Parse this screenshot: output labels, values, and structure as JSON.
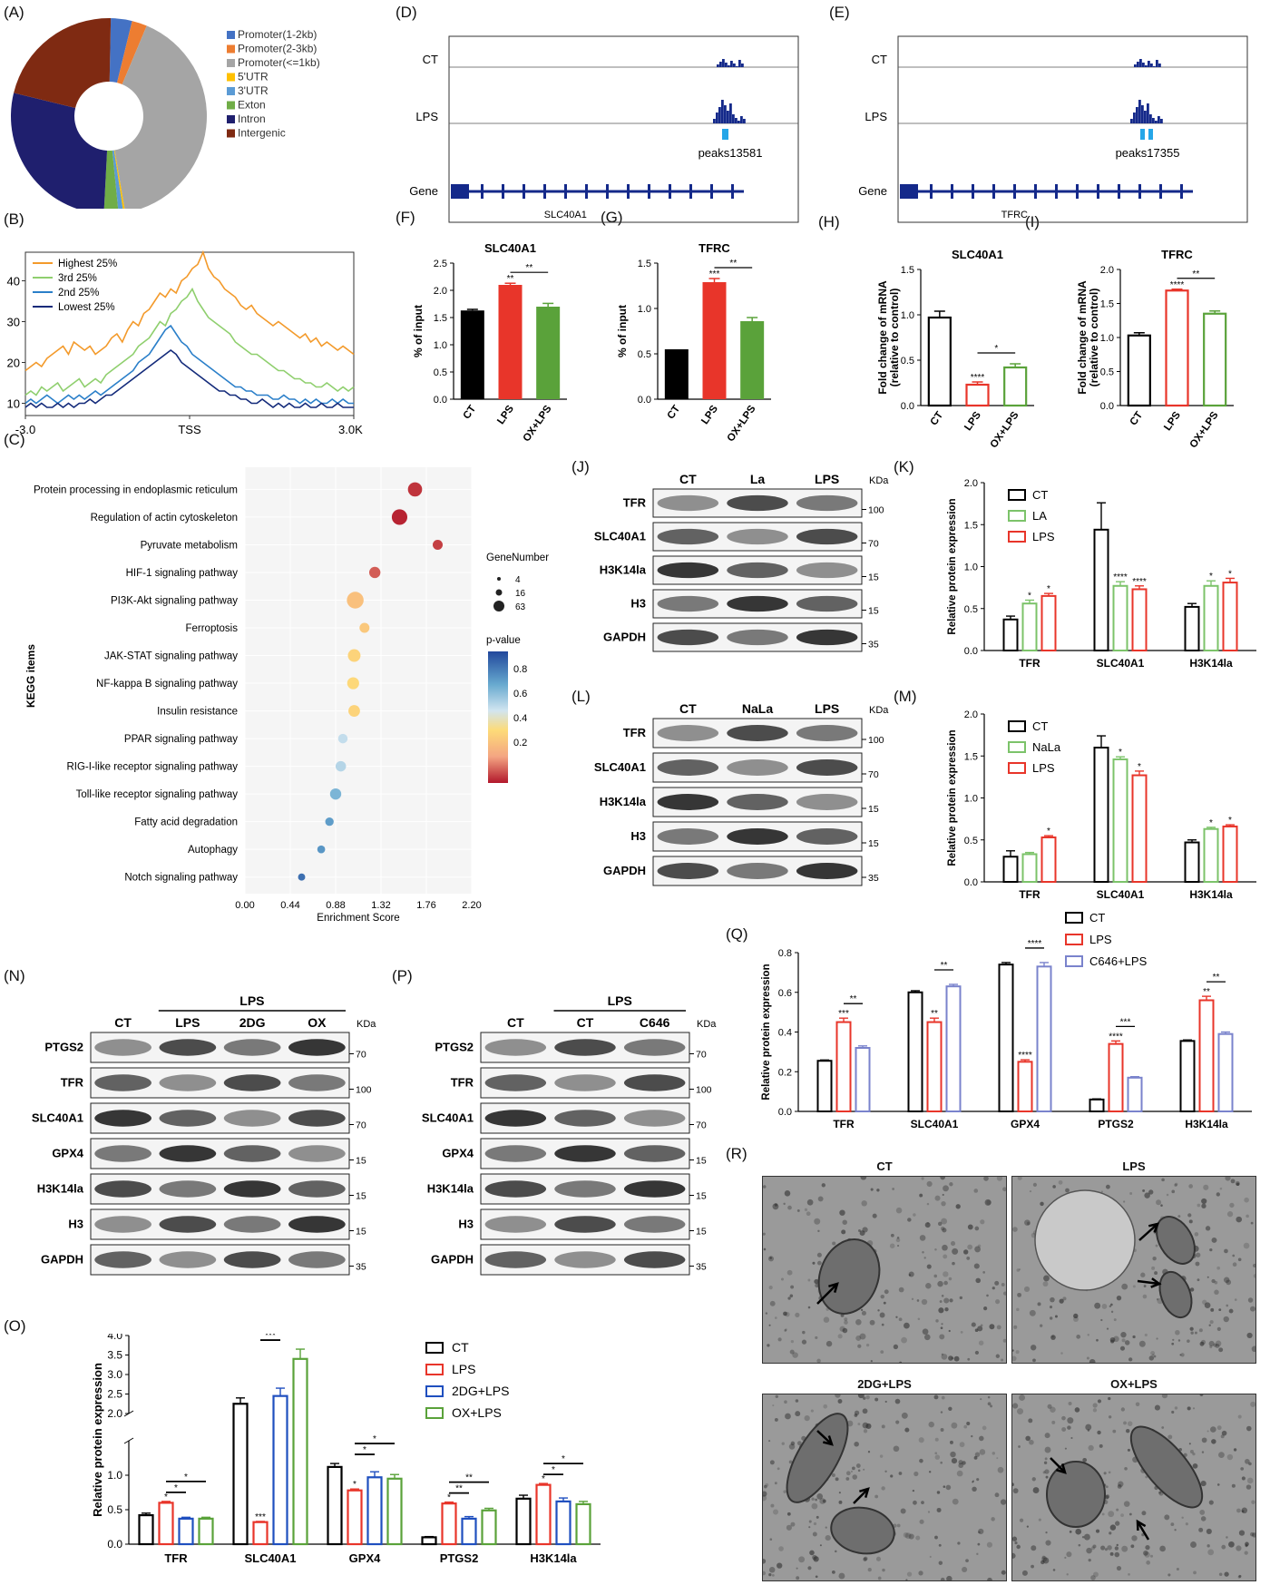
{
  "panel_labels": {
    "A": "(A)",
    "B": "(B)",
    "C": "(C)",
    "D": "(D)",
    "E": "(E)",
    "F": "(F)",
    "G": "(G)",
    "H": "(H)",
    "I": "(I)",
    "J": "(J)",
    "K": "(K)",
    "L": "(L)",
    "M": "(M)",
    "N": "(N)",
    "O": "(O)",
    "P": "(P)",
    "Q": "(Q)",
    "R": "(R)"
  },
  "colors": {
    "ct": "#000000",
    "lps": "#e8352a",
    "green": "#5aa23a",
    "la": "#7cc36a",
    "blue": "#1f4fbf",
    "purple": "#7a83cc",
    "orange": "#f39a2b",
    "navy": "#132a7a"
  },
  "chart_data": [
    {
      "id": "A",
      "type": "pie",
      "donut": true,
      "categories": [
        "Promoter(1-2kb)",
        "Promoter(2-3kb)",
        "Promoter(<=1kb)",
        "5'UTR",
        "3'UTR",
        "Exton",
        "Intron",
        "Intergenic"
      ],
      "values": [
        3.5,
        2.5,
        41,
        0.3,
        0.8,
        2.4,
        28,
        21.5
      ],
      "colors": [
        "#4472c4",
        "#ed7d31",
        "#a5a5a5",
        "#ffc000",
        "#5b9bd5",
        "#70ad47",
        "#1f1f6e",
        "#7f2a12"
      ]
    },
    {
      "id": "B",
      "type": "line",
      "x_ticks": [
        "-3.0",
        "TSS",
        "3.0Kb"
      ],
      "y_ticks": [
        10,
        20,
        30,
        40
      ],
      "ylim": [
        7,
        47
      ],
      "series": [
        {
          "name": "Highest 25%",
          "color": "#f39a2b",
          "values": [
            18,
            19,
            20,
            19,
            21,
            22,
            23,
            24,
            22,
            25,
            24,
            23,
            24,
            22,
            23,
            24,
            26,
            27,
            25,
            28,
            30,
            29,
            32,
            33,
            35,
            37,
            36,
            38,
            37,
            40,
            41,
            43,
            44,
            47,
            43,
            41,
            40,
            38,
            37,
            36,
            34,
            33,
            34,
            32,
            31,
            30,
            29,
            30,
            29,
            28,
            27,
            26,
            27,
            25,
            26,
            24,
            25,
            24,
            23,
            24,
            23,
            22
          ]
        },
        {
          "name": "3rd 25%",
          "color": "#8fcf6e",
          "values": [
            12,
            13,
            12,
            14,
            13,
            14,
            15,
            13,
            14,
            15,
            16,
            14,
            15,
            16,
            15,
            17,
            18,
            19,
            20,
            21,
            22,
            24,
            25,
            26,
            28,
            30,
            29,
            32,
            33,
            35,
            36,
            38,
            35,
            33,
            31,
            30,
            29,
            28,
            27,
            25,
            24,
            23,
            22,
            22,
            21,
            20,
            19,
            18,
            18,
            17,
            16,
            16,
            15,
            15,
            14,
            14,
            15,
            14,
            13,
            14,
            13,
            14
          ]
        },
        {
          "name": "2nd 25%",
          "color": "#2a7fc9",
          "values": [
            10,
            11,
            10,
            11,
            12,
            11,
            10,
            11,
            12,
            11,
            12,
            11,
            12,
            13,
            12,
            13,
            14,
            15,
            16,
            17,
            18,
            20,
            21,
            22,
            24,
            26,
            28,
            29,
            27,
            25,
            24,
            22,
            21,
            20,
            19,
            18,
            17,
            16,
            15,
            14,
            14,
            13,
            13,
            12,
            12,
            12,
            11,
            11,
            12,
            11,
            11,
            10,
            11,
            10,
            11,
            10,
            10,
            11,
            10,
            11,
            10,
            10
          ]
        },
        {
          "name": "Lowest 25%",
          "color": "#132a7a",
          "values": [
            9,
            10,
            9,
            10,
            9,
            9,
            10,
            9,
            10,
            9,
            10,
            10,
            11,
            10,
            11,
            12,
            12,
            13,
            14,
            15,
            16,
            17,
            18,
            19,
            20,
            21,
            22,
            23,
            22,
            20,
            19,
            18,
            17,
            16,
            15,
            14,
            13,
            13,
            12,
            12,
            11,
            11,
            10,
            10,
            11,
            10,
            9,
            10,
            9,
            10,
            9,
            9,
            10,
            9,
            9,
            10,
            9,
            9,
            10,
            9,
            9,
            9
          ]
        }
      ]
    },
    {
      "id": "C",
      "type": "scatter",
      "xlabel": "Enrichment Score",
      "ylabel": "KEGG items",
      "x_ticks": [
        "0.00",
        "0.44",
        "0.88",
        "1.32",
        "1.76",
        "2.20"
      ],
      "xlim": [
        0,
        2.2
      ],
      "legend_size_title": "GeneNumber",
      "legend_size_values": [
        4,
        16,
        63
      ],
      "legend_color_title": "p-value",
      "legend_color_ticks": [
        "0.8",
        "0.6",
        "0.4",
        "0.2"
      ],
      "categories": [
        "Protein processing in endoplasmic reticulum",
        "Regulation of actin cytoskeleton",
        "Pyruvate metabolism",
        "HIF-1 signaling pathway",
        "PI3K-Akt signaling pathway",
        "Ferroptosis",
        "JAK-STAT signaling pathway",
        "NF-kappa B signaling pathway",
        "Insulin resistance",
        "PPAR signaling pathway",
        "RIG-I-like receptor signaling pathway",
        "Toll-like receptor signaling pathway",
        "Fatty acid degradation",
        "Autophagy",
        "Notch signaling pathway"
      ],
      "x": [
        1.65,
        1.5,
        1.87,
        1.26,
        1.07,
        1.16,
        1.06,
        1.05,
        1.06,
        0.95,
        0.93,
        0.88,
        0.82,
        0.74,
        0.55
      ],
      "size": [
        40,
        50,
        16,
        22,
        60,
        16,
        30,
        26,
        24,
        14,
        18,
        22,
        10,
        8,
        6
      ],
      "pvalue": [
        0.05,
        0.02,
        0.07,
        0.12,
        0.35,
        0.38,
        0.42,
        0.44,
        0.42,
        0.62,
        0.64,
        0.72,
        0.78,
        0.8,
        0.9
      ]
    },
    {
      "id": "F",
      "type": "bar",
      "title": "SLC40A1",
      "ylabel": "% of input",
      "categories": [
        "CT",
        "LPS",
        "OX+LPS"
      ],
      "values": [
        1.63,
        2.1,
        1.7
      ],
      "errors": [
        0.02,
        0.03,
        0.06
      ],
      "ylim": [
        0,
        2.5
      ],
      "y_ticks": [
        "0.0",
        "0.5",
        "1.0",
        "1.5",
        "2.0",
        "2.5"
      ],
      "colors": [
        "#000000",
        "#e8352a",
        "#5aa23a"
      ],
      "filled": true,
      "stars": [
        "",
        "**",
        ""
      ],
      "brackets": [
        {
          "from": 1,
          "to": 2,
          "label": "**"
        }
      ]
    },
    {
      "id": "G",
      "type": "bar",
      "title": "TFRC",
      "ylabel": "% of input",
      "categories": [
        "CT",
        "LPS",
        "OX+LPS"
      ],
      "values": [
        0.55,
        1.29,
        0.86
      ],
      "errors": [
        0,
        0.04,
        0.04
      ],
      "ylim": [
        0,
        1.5
      ],
      "y_ticks": [
        "0.0",
        "0.5",
        "1.0",
        "1.5"
      ],
      "colors": [
        "#000000",
        "#e8352a",
        "#5aa23a"
      ],
      "filled": true,
      "stars": [
        "",
        "***",
        ""
      ],
      "brackets": [
        {
          "from": 1,
          "to": 2,
          "label": "**"
        }
      ]
    },
    {
      "id": "H",
      "type": "bar",
      "title": "SLC40A1",
      "ylabel": "Fold change of mRNA (relative to control)",
      "categories": [
        "CT",
        "LPS",
        "OX+LPS"
      ],
      "values": [
        0.97,
        0.23,
        0.42
      ],
      "errors": [
        0.07,
        0.03,
        0.04
      ],
      "ylim": [
        0,
        1.5
      ],
      "y_ticks": [
        "0.0",
        "0.5",
        "1.0",
        "1.5"
      ],
      "colors": [
        "#000000",
        "#e8352a",
        "#5aa23a"
      ],
      "filled": false,
      "stars": [
        "",
        "****",
        ""
      ],
      "brackets": [
        {
          "from": 1,
          "to": 2,
          "label": "*"
        }
      ]
    },
    {
      "id": "I",
      "type": "bar",
      "title": "TFRC",
      "ylabel": "Fold change of mRNA (relative to control)",
      "categories": [
        "CT",
        "LPS",
        "OX+LPS"
      ],
      "values": [
        1.03,
        1.69,
        1.35
      ],
      "errors": [
        0.04,
        0.02,
        0.04
      ],
      "ylim": [
        0,
        2.0
      ],
      "y_ticks": [
        "0.0",
        "0.5",
        "1.0",
        "1.5",
        "2.0"
      ],
      "colors": [
        "#000000",
        "#e8352a",
        "#5aa23a"
      ],
      "filled": false,
      "stars": [
        "",
        "****",
        ""
      ],
      "brackets": [
        {
          "from": 1,
          "to": 2,
          "label": "**"
        }
      ]
    },
    {
      "id": "K",
      "type": "bar",
      "ylabel": "Relative protein expression",
      "categories": [
        "TFR",
        "SLC40A1",
        "H3K14la"
      ],
      "ylim": [
        0,
        2.0
      ],
      "y_ticks": [
        "0.0",
        "0.5",
        "1.0",
        "1.5",
        "2.0"
      ],
      "series": [
        {
          "name": "CT",
          "color": "#000000",
          "values": [
            0.37,
            1.44,
            0.52
          ],
          "errors": [
            0.04,
            0.32,
            0.04
          ],
          "stars": [
            "",
            "",
            ""
          ]
        },
        {
          "name": "LA",
          "color": "#7cc36a",
          "values": [
            0.56,
            0.77,
            0.77
          ],
          "errors": [
            0.04,
            0.05,
            0.06
          ],
          "stars": [
            "*",
            "****",
            "*"
          ]
        },
        {
          "name": "LPS",
          "color": "#e8352a",
          "values": [
            0.65,
            0.73,
            0.81
          ],
          "errors": [
            0.03,
            0.04,
            0.05
          ],
          "stars": [
            "*",
            "****",
            "*"
          ]
        }
      ]
    },
    {
      "id": "M",
      "type": "bar",
      "ylabel": "Relative protein expression",
      "categories": [
        "TFR",
        "SLC40A1",
        "H3K14la"
      ],
      "ylim": [
        0,
        2.0
      ],
      "y_ticks": [
        "0.0",
        "0.5",
        "1.0",
        "1.5",
        "2.0"
      ],
      "series": [
        {
          "name": "CT",
          "color": "#000000",
          "values": [
            0.3,
            1.6,
            0.47
          ],
          "errors": [
            0.07,
            0.14,
            0.03
          ],
          "stars": [
            "",
            "",
            ""
          ]
        },
        {
          "name": "NaLa",
          "color": "#7cc36a",
          "values": [
            0.33,
            1.46,
            0.63
          ],
          "errors": [
            0.02,
            0.03,
            0.02
          ],
          "stars": [
            "",
            "*",
            "*"
          ]
        },
        {
          "name": "LPS",
          "color": "#e8352a",
          "values": [
            0.53,
            1.27,
            0.66
          ],
          "errors": [
            0.02,
            0.05,
            0.02
          ],
          "stars": [
            "*",
            "*",
            "*"
          ]
        }
      ]
    },
    {
      "id": "O",
      "type": "bar",
      "ylabel": "Relative  protein expression",
      "categories": [
        "TFR",
        "SLC40A1",
        "GPX4",
        "PTGS2",
        "H3K14la"
      ],
      "y_ticks": [
        "0.0",
        "0.5",
        "1.0",
        "2.0",
        "2.5",
        "3.0",
        "3.5",
        "4.0"
      ],
      "axis_break": [
        1.5,
        2.0
      ],
      "series": [
        {
          "name": "CT",
          "color": "#000000",
          "values": [
            0.42,
            2.25,
            1.12,
            0.1,
            0.66
          ],
          "errors": [
            0.03,
            0.15,
            0.05,
            0.01,
            0.05
          ],
          "stars": [
            "",
            "",
            "",
            "",
            ""
          ]
        },
        {
          "name": "LPS",
          "color": "#e8352a",
          "values": [
            0.6,
            0.32,
            0.78,
            0.59,
            0.86
          ],
          "errors": [
            0.02,
            0.01,
            0.02,
            0.02,
            0.02
          ],
          "stars": [
            "*",
            "***",
            "*",
            "*",
            "*"
          ]
        },
        {
          "name": "2DG+LPS",
          "color": "#1f4fbf",
          "values": [
            0.37,
            2.45,
            0.97,
            0.37,
            0.62
          ],
          "errors": [
            0.02,
            0.2,
            0.08,
            0.03,
            0.05
          ],
          "stars": [
            "",
            "",
            "",
            "",
            ""
          ]
        },
        {
          "name": "OX+LPS",
          "color": "#5aa23a",
          "values": [
            0.37,
            3.4,
            0.95,
            0.49,
            0.58
          ],
          "errors": [
            0.02,
            0.25,
            0.06,
            0.03,
            0.04
          ],
          "stars": [
            "",
            "",
            "",
            "",
            ""
          ]
        }
      ],
      "brackets": [
        {
          "cat": 0,
          "rows": [
            "*",
            "*"
          ]
        },
        {
          "cat": 1,
          "rows": [
            "***",
            "****"
          ]
        },
        {
          "cat": 2,
          "rows": [
            "*",
            "*"
          ]
        },
        {
          "cat": 3,
          "rows": [
            "**",
            "**"
          ]
        },
        {
          "cat": 4,
          "rows": [
            "*",
            "*"
          ]
        }
      ]
    },
    {
      "id": "Q",
      "type": "bar",
      "ylabel": "Relative protein expression",
      "categories": [
        "TFR",
        "SLC40A1",
        "GPX4",
        "PTGS2",
        "H3K14la"
      ],
      "ylim": [
        0,
        0.8
      ],
      "y_ticks": [
        "0.0",
        "0.2",
        "0.4",
        "0.6",
        "0.8"
      ],
      "series": [
        {
          "name": "CT",
          "color": "#000000",
          "values": [
            0.255,
            0.6,
            0.74,
            0.06,
            0.355
          ],
          "errors": [
            0.004,
            0.008,
            0.01,
            0.003,
            0.005
          ],
          "stars": [
            "",
            "",
            "",
            "",
            ""
          ]
        },
        {
          "name": "LPS",
          "color": "#e8352a",
          "values": [
            0.45,
            0.45,
            0.25,
            0.34,
            0.56
          ],
          "errors": [
            0.02,
            0.02,
            0.01,
            0.015,
            0.02
          ],
          "stars": [
            "***",
            "**",
            "****",
            "****",
            "**"
          ]
        },
        {
          "name": "C646+LPS",
          "color": "#7a83cc",
          "values": [
            0.32,
            0.63,
            0.73,
            0.17,
            0.39
          ],
          "errors": [
            0.01,
            0.01,
            0.02,
            0.005,
            0.01
          ],
          "stars": [
            "",
            "",
            "",
            "",
            ""
          ]
        }
      ],
      "brackets": [
        "**",
        "**",
        "****",
        "***",
        "**"
      ]
    }
  ],
  "tracks": {
    "D": {
      "row_labels": [
        "CT",
        "LPS",
        "Gene"
      ],
      "peak": "peaks13581",
      "gene": "SLC40A1"
    },
    "E": {
      "row_labels": [
        "CT",
        "LPS",
        "Gene"
      ],
      "peak": "peaks17355",
      "gene": "TFRC"
    }
  },
  "blots": {
    "J": {
      "lanes": [
        "CT",
        "La",
        "LPS"
      ],
      "rows": [
        "TFR",
        "SLC40A1",
        "H3K14la",
        "H3",
        "GAPDH"
      ],
      "kda_title": "KDa",
      "markers": [
        "100",
        "70",
        "15",
        "15",
        "35"
      ]
    },
    "L": {
      "lanes": [
        "CT",
        "NaLa",
        "LPS"
      ],
      "rows": [
        "TFR",
        "SLC40A1",
        "H3K14la",
        "H3",
        "GAPDH"
      ],
      "kda_title": "KDa",
      "markers": [
        "100",
        "70",
        "15",
        "15",
        "35"
      ]
    },
    "N": {
      "group_label": "LPS",
      "lanes": [
        "CT",
        "LPS",
        "2DG",
        "OX"
      ],
      "rows": [
        "PTGS2",
        "TFR",
        "SLC40A1",
        "GPX4",
        "H3K14la",
        "H3",
        "GAPDH"
      ],
      "kda_title": "KDa",
      "markers": [
        "70",
        "100",
        "70",
        "15",
        "15",
        "15",
        "35"
      ]
    },
    "P": {
      "group_label": "LPS",
      "lanes": [
        "CT",
        "CT",
        "C646"
      ],
      "rows": [
        "PTGS2",
        "TFR",
        "SLC40A1",
        "GPX4",
        "H3K14la",
        "H3",
        "GAPDH"
      ],
      "kda_title": "KDa",
      "markers": [
        "70",
        "100",
        "70",
        "15",
        "15",
        "15",
        "35"
      ]
    }
  },
  "tem": {
    "titles": [
      "CT",
      "LPS",
      "2DG+LPS",
      "OX+LPS"
    ]
  }
}
